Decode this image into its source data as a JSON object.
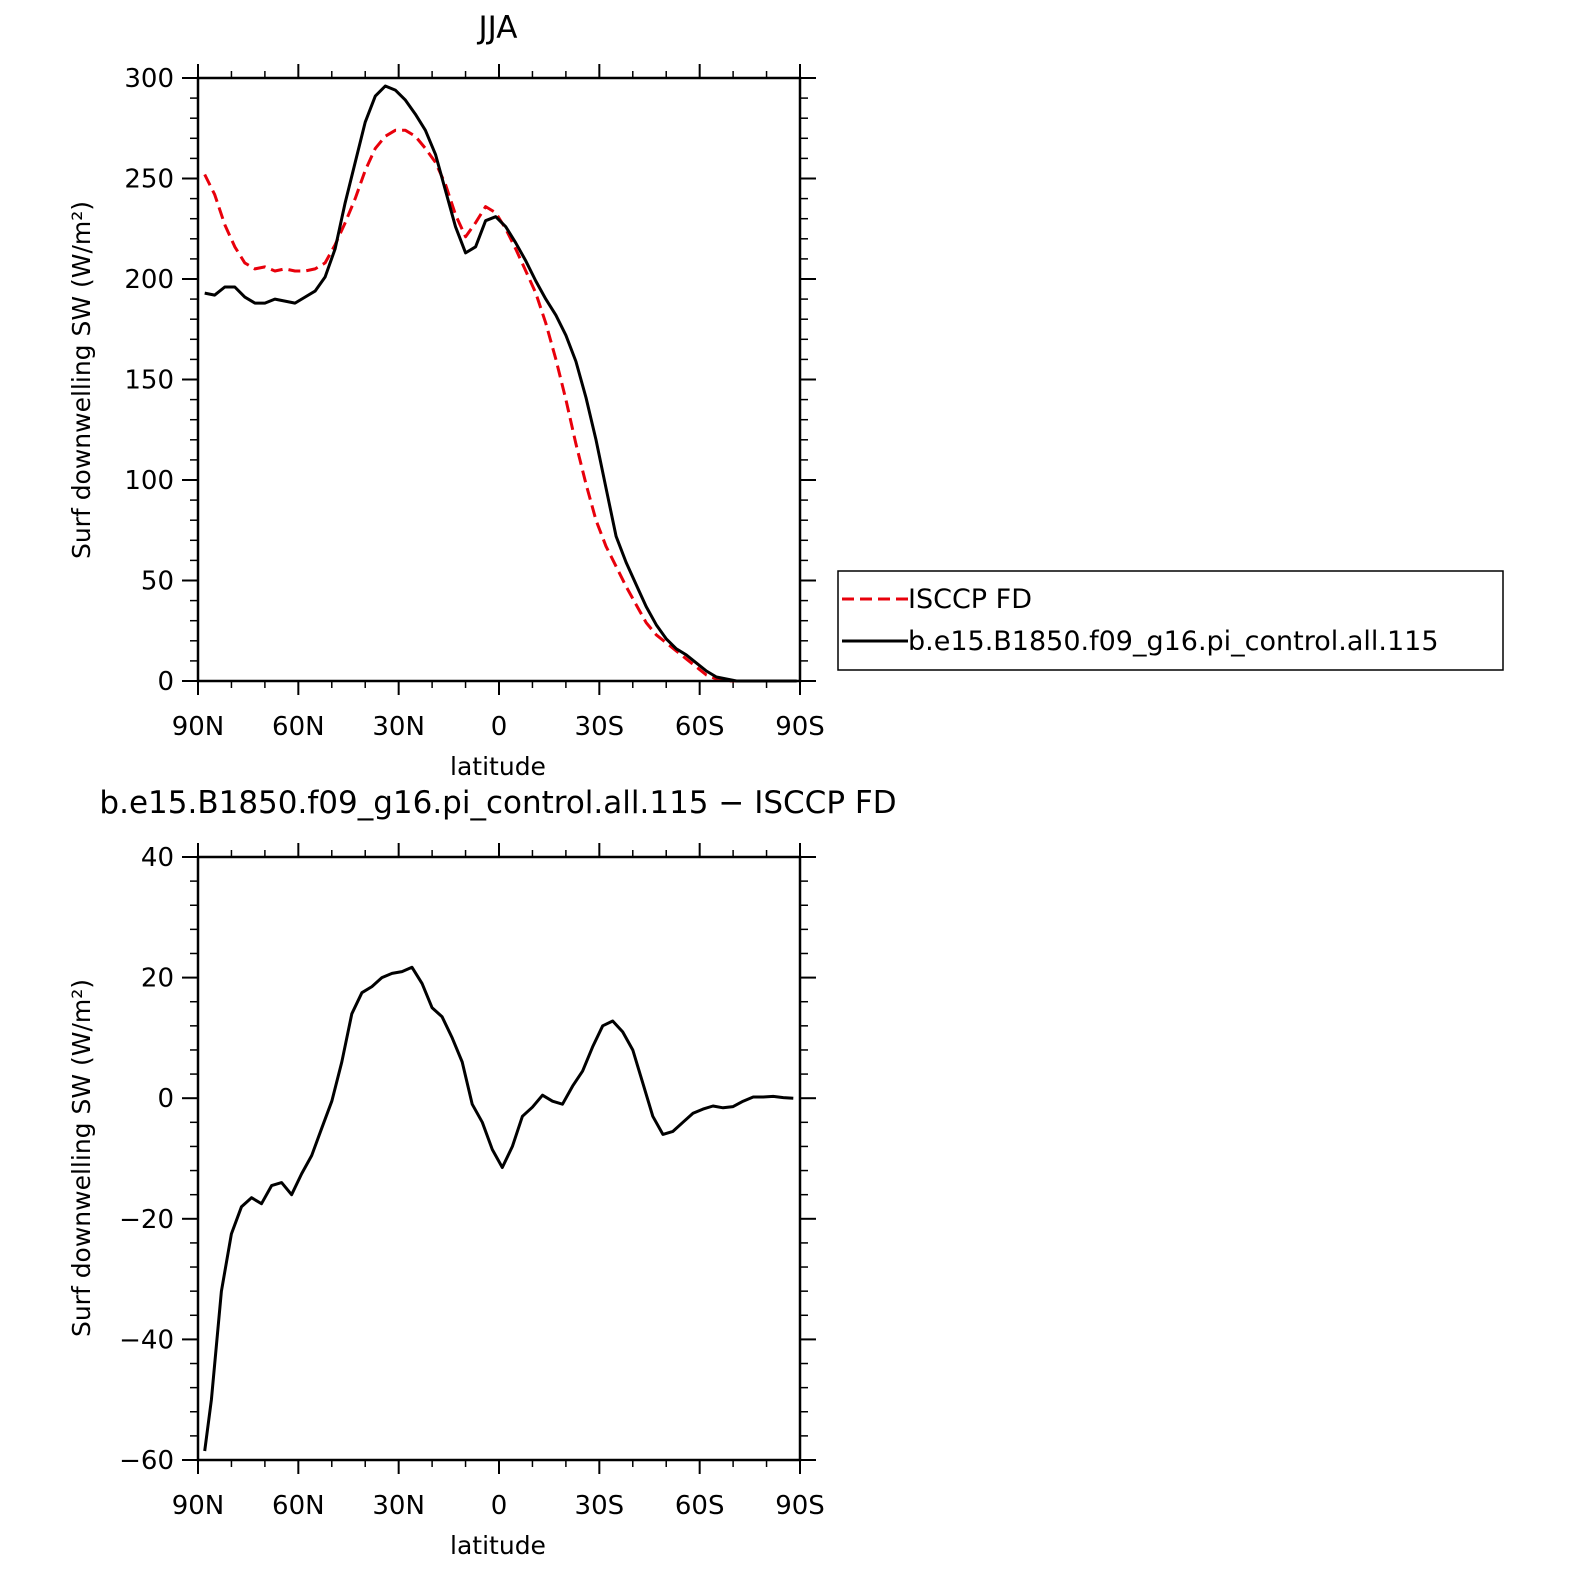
{
  "chart_data": [
    {
      "type": "line",
      "title": "JJA",
      "xlabel": "latitude",
      "ylabel": "Surf downwelling SW (W/m²)",
      "xlim": [
        90,
        -90
      ],
      "ylim": [
        0,
        300
      ],
      "xticks": [
        90,
        60,
        30,
        0,
        -30,
        -60,
        -90
      ],
      "xtick_labels": [
        "90N",
        "60N",
        "30N",
        "0",
        "30S",
        "60S",
        "90S"
      ],
      "yticks": [
        0,
        50,
        100,
        150,
        200,
        250,
        300
      ],
      "ytick_labels": [
        "0",
        "50",
        "100",
        "150",
        "200",
        "250",
        "300"
      ],
      "grid": false,
      "legend": "outside-right",
      "series": [
        {
          "name": "ISCCP FD",
          "color": "#e8000b",
          "dash": "dashed",
          "x": [
            88,
            85,
            82,
            79,
            76,
            73,
            70,
            67,
            64,
            61,
            58,
            55,
            52,
            49,
            46,
            43,
            40,
            37,
            34,
            31,
            28,
            25,
            22,
            19,
            16,
            13,
            10,
            7,
            4,
            1,
            -2,
            -5,
            -8,
            -11,
            -14,
            -17,
            -20,
            -23,
            -26,
            -29,
            -32,
            -35,
            -38,
            -41,
            -44,
            -47,
            -50,
            -53,
            -56,
            -59,
            -62,
            -65,
            -68,
            -71,
            -74,
            -77,
            -80,
            -83,
            -86,
            -89
          ],
          "values": [
            252,
            242,
            227,
            216,
            208,
            205,
            206,
            204,
            205,
            204,
            204,
            205,
            208,
            217,
            228,
            240,
            254,
            265,
            271,
            274,
            274,
            271,
            265,
            258,
            247,
            232,
            221,
            228,
            236,
            233,
            225,
            215,
            204,
            193,
            178,
            160,
            140,
            118,
            98,
            80,
            67,
            57,
            47,
            38,
            29,
            23,
            19,
            15,
            11,
            7,
            3,
            1,
            0,
            0,
            0,
            0,
            0,
            0,
            0,
            0
          ]
        },
        {
          "name": "b.e15.B1850.f09_g16.pi_control.all.115",
          "color": "#000000",
          "dash": "solid",
          "x": [
            88,
            85,
            82,
            79,
            76,
            73,
            70,
            67,
            64,
            61,
            58,
            55,
            52,
            49,
            46,
            43,
            40,
            37,
            34,
            31,
            28,
            25,
            22,
            19,
            16,
            13,
            10,
            7,
            4,
            1,
            -2,
            -5,
            -8,
            -11,
            -14,
            -17,
            -20,
            -23,
            -26,
            -29,
            -32,
            -35,
            -38,
            -41,
            -44,
            -47,
            -50,
            -53,
            -56,
            -59,
            -62,
            -65,
            -68,
            -71,
            -74,
            -77,
            -80,
            -83,
            -86,
            -89
          ],
          "values": [
            193,
            192,
            196,
            196,
            191,
            188,
            188,
            190,
            189,
            188,
            191,
            194,
            201,
            215,
            238,
            258,
            278,
            291,
            296,
            294,
            289,
            282,
            274,
            262,
            244,
            226,
            213,
            216,
            229,
            231,
            226,
            218,
            209,
            199,
            190,
            182,
            172,
            159,
            141,
            120,
            96,
            72,
            59,
            48,
            37,
            28,
            21,
            16,
            13,
            9,
            5,
            2,
            1,
            0,
            0,
            0,
            0,
            0,
            0,
            0
          ]
        }
      ]
    },
    {
      "type": "line",
      "title": "b.e15.B1850.f09_g16.pi_control.all.115 − ISCCP FD",
      "xlabel": "latitude",
      "ylabel": "Surf downwelling SW (W/m²)",
      "xlim": [
        90,
        -90
      ],
      "ylim": [
        -60,
        40
      ],
      "xticks": [
        90,
        60,
        30,
        0,
        -30,
        -60,
        -90
      ],
      "xtick_labels": [
        "90N",
        "60N",
        "30N",
        "0",
        "30S",
        "60S",
        "90S"
      ],
      "yticks": [
        -60,
        -40,
        -20,
        0,
        20,
        40
      ],
      "ytick_labels": [
        "−60",
        "−40",
        "−20",
        "0",
        "20",
        "40"
      ],
      "grid": false,
      "series": [
        {
          "color": "#000000",
          "dash": "solid",
          "x": [
            88,
            86,
            83,
            80,
            77,
            74,
            71,
            68,
            65,
            62,
            59,
            56,
            53,
            50,
            47,
            44,
            41,
            38,
            35,
            32,
            29,
            26,
            23,
            20,
            17,
            14,
            11,
            8,
            5,
            2,
            -1,
            -4,
            -7,
            -10,
            -13,
            -16,
            -19,
            -22,
            -25,
            -28,
            -31,
            -34,
            -37,
            -40,
            -43,
            -46,
            -49,
            -52,
            -55,
            -58,
            -61,
            -64,
            -67,
            -70,
            -73,
            -76,
            -79,
            -82,
            -85,
            -88
          ],
          "values": [
            -58.5,
            -50,
            -32,
            -22.5,
            -18,
            -16.5,
            -17.5,
            -14.5,
            -14,
            -16,
            -12.5,
            -9.5,
            -5,
            -0.5,
            6,
            14,
            17.5,
            18.5,
            20,
            20.7,
            21,
            21.7,
            19,
            15,
            13.5,
            10,
            6,
            -1,
            -4,
            -8.5,
            -11.5,
            -8,
            -3,
            -1.5,
            0.5,
            -0.5,
            -1,
            2,
            4.5,
            8.5,
            12,
            12.8,
            11,
            8,
            2.5,
            -3,
            -6,
            -5.5,
            -4,
            -2.5,
            -1.8,
            -1.3,
            -1.6,
            -1.4,
            -0.5,
            0.2,
            0.2,
            0.3,
            0.1,
            0
          ]
        }
      ]
    }
  ]
}
